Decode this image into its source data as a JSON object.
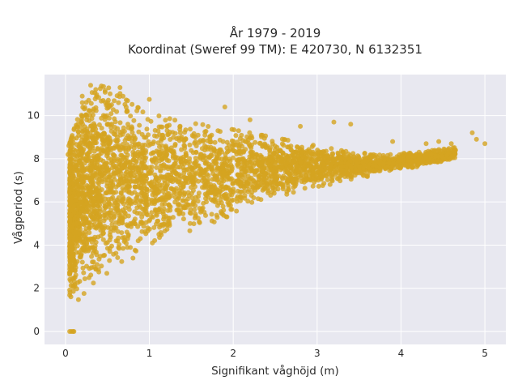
{
  "chart_data": {
    "type": "scatter",
    "title_line1": "År 1979 - 2019",
    "title_line2": "Koordinat (Sweref 99 TM): E 420730, N 6132351",
    "xlabel": "Signifikant våghöjd (m)",
    "ylabel": "Vågperiod (s)",
    "xlim": [
      -0.25,
      5.25
    ],
    "ylim": [
      -0.6,
      11.9
    ],
    "xticks": [
      0,
      1,
      2,
      3,
      4,
      5
    ],
    "yticks": [
      0,
      2,
      4,
      6,
      8,
      10
    ],
    "grid": true,
    "background": "#e8e8f0",
    "point_color": "#d4a420",
    "envelope": {
      "upper": [
        [
          0.05,
          8.7
        ],
        [
          0.2,
          10.6
        ],
        [
          0.4,
          11.4
        ],
        [
          0.6,
          11.2
        ],
        [
          0.8,
          10.5
        ],
        [
          1.0,
          10.1
        ],
        [
          1.4,
          9.7
        ],
        [
          1.8,
          9.5
        ],
        [
          2.2,
          9.2
        ],
        [
          2.6,
          8.9
        ],
        [
          3.0,
          8.6
        ],
        [
          3.4,
          8.3
        ],
        [
          3.8,
          8.2
        ],
        [
          4.2,
          8.3
        ],
        [
          4.6,
          8.5
        ],
        [
          5.0,
          8.7
        ]
      ],
      "lower": [
        [
          0.05,
          1.3
        ],
        [
          0.1,
          1.2
        ],
        [
          0.3,
          1.8
        ],
        [
          0.5,
          2.4
        ],
        [
          0.8,
          3.1
        ],
        [
          1.0,
          3.5
        ],
        [
          1.4,
          4.3
        ],
        [
          1.8,
          5.0
        ],
        [
          2.2,
          5.6
        ],
        [
          2.6,
          6.2
        ],
        [
          3.0,
          6.6
        ],
        [
          3.4,
          7.0
        ],
        [
          3.8,
          7.3
        ],
        [
          4.2,
          7.6
        ],
        [
          4.6,
          7.9
        ],
        [
          5.0,
          8.1
        ]
      ]
    },
    "scattered_points": [
      [
        0.3,
        11.4
      ],
      [
        0.65,
        11.3
      ],
      [
        0.2,
        10.9
      ],
      [
        0.45,
        10.7
      ],
      [
        0.55,
        10.5
      ],
      [
        1.0,
        10.75
      ],
      [
        1.9,
        10.4
      ],
      [
        2.2,
        9.8
      ],
      [
        2.8,
        9.5
      ],
      [
        3.2,
        9.7
      ],
      [
        3.4,
        9.6
      ],
      [
        3.9,
        8.8
      ],
      [
        4.3,
        8.7
      ],
      [
        4.45,
        8.8
      ],
      [
        4.6,
        8.7
      ],
      [
        4.85,
        9.2
      ],
      [
        4.9,
        8.9
      ],
      [
        5.0,
        8.7
      ],
      [
        0.05,
        0.0
      ],
      [
        0.07,
        0.0
      ],
      [
        0.09,
        0.0
      ],
      [
        0.1,
        0.0
      ],
      [
        0.04,
        8.6
      ],
      [
        0.03,
        8.2
      ]
    ]
  }
}
